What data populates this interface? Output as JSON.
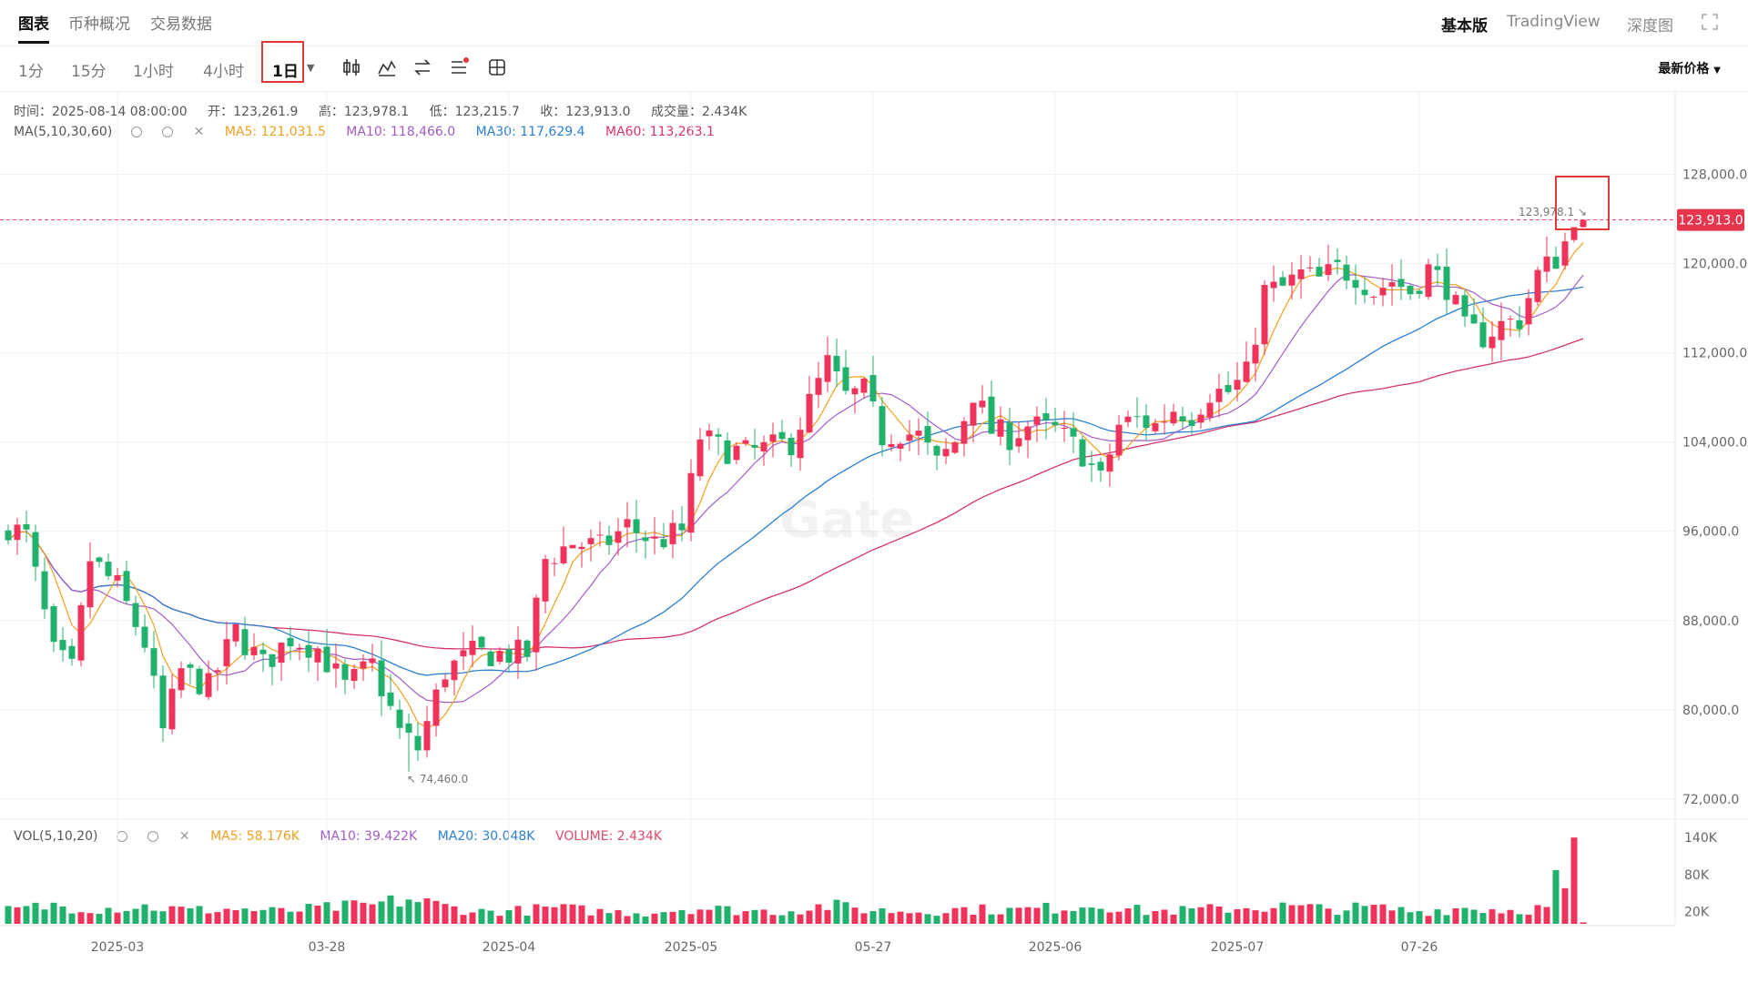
{
  "nav": {
    "tabs": [
      "图表",
      "币种概况",
      "交易数据"
    ],
    "right_tabs": [
      "基本版",
      "TradingView",
      "深度图"
    ]
  },
  "toolbar": {
    "intervals": [
      "1分",
      "15分",
      "1小时",
      "4小时",
      "1日"
    ],
    "active_interval": "1日",
    "price_type": "最新价格",
    "tools": [
      "candle-type-icon",
      "indicator-icon",
      "swap-icon",
      "list-settings-icon",
      "layout-icon"
    ]
  },
  "ohlc": {
    "time": "时间：2025-08-14 08:00:00",
    "open": "开：123,261.9",
    "high": "高：123,978.1",
    "low": "低：123,215.7",
    "close": "收：123,913.0",
    "volume": "成交量：2.434K"
  },
  "ma_legend": {
    "label": "MA(5,10,30,60)",
    "ma5": "MA5: 121,031.5",
    "ma10": "MA10: 118,466.0",
    "ma30": "MA30: 117,629.4",
    "ma60": "MA60: 113,263.1"
  },
  "vol_legend": {
    "label": "VOL(5,10,20)",
    "ma5": "MA5: 58.176K",
    "ma10": "MA10: 39.422K",
    "ma20": "MA20: 30.048K",
    "volume": "VOLUME: 2.434K"
  },
  "colors": {
    "up": "#f0335a",
    "down": "#20b26c",
    "ma5": "#f0a020",
    "ma10": "#a05cc8",
    "ma30": "#2d7fd4",
    "ma60": "#d6336c",
    "highlight": "#e03a3a"
  },
  "chart_data": {
    "type": "candlestick",
    "watermark": "Gate",
    "price_axis": {
      "ticks": [
        "128,000.0",
        "120,000.0",
        "112,000.0",
        "104,000.0",
        "96,000.0",
        "88,000.0",
        "80,000.0",
        "72,000.0"
      ],
      "tick_values": [
        128000,
        120000,
        112000,
        104000,
        96000,
        88000,
        80000,
        72000
      ],
      "range": [
        70200,
        132200
      ]
    },
    "volume_axis": {
      "ticks": [
        "140K",
        "80K",
        "20K"
      ],
      "tick_values": [
        140000,
        80000,
        20000
      ],
      "range": [
        0,
        155000
      ]
    },
    "x_labels": [
      {
        "label": "2025-03",
        "i": 12
      },
      {
        "label": "03-28",
        "i": 35
      },
      {
        "label": "2025-04",
        "i": 55
      },
      {
        "label": "2025-05",
        "i": 75
      },
      {
        "label": "05-27",
        "i": 95
      },
      {
        "label": "2025-06",
        "i": 115
      },
      {
        "label": "2025-07",
        "i": 135
      },
      {
        "label": "07-26",
        "i": 155
      }
    ],
    "current_price": {
      "value": 123913.0,
      "label": "123,913.0"
    },
    "annotations": [
      {
        "text": "↖ 74,460.0",
        "i": 44,
        "price": 74460
      },
      {
        "text": "123,978.1 ↘",
        "i": 173,
        "price": 123978
      }
    ],
    "close_points": [
      [
        0,
        96500
      ],
      [
        2,
        95500
      ],
      [
        5,
        85000
      ],
      [
        7,
        83500
      ],
      [
        9,
        93500
      ],
      [
        12,
        91000
      ],
      [
        15,
        86000
      ],
      [
        17,
        78000
      ],
      [
        19,
        83500
      ],
      [
        22,
        82000
      ],
      [
        25,
        87000
      ],
      [
        28,
        84000
      ],
      [
        31,
        86500
      ],
      [
        34,
        85500
      ],
      [
        37,
        82000
      ],
      [
        40,
        84000
      ],
      [
        43,
        78000
      ],
      [
        45,
        76500
      ],
      [
        48,
        83500
      ],
      [
        51,
        85000
      ],
      [
        54,
        85000
      ],
      [
        57,
        85000
      ],
      [
        59,
        93500
      ],
      [
        62,
        95000
      ],
      [
        65,
        94500
      ],
      [
        68,
        96500
      ],
      [
        71,
        95000
      ],
      [
        74,
        96000
      ],
      [
        76,
        104500
      ],
      [
        78,
        103500
      ],
      [
        81,
        103000
      ],
      [
        84,
        103500
      ],
      [
        86,
        104000
      ],
      [
        88,
        107500
      ],
      [
        90,
        111000
      ],
      [
        92,
        108000
      ],
      [
        94,
        108500
      ],
      [
        96,
        104500
      ],
      [
        98,
        105000
      ],
      [
        100,
        104500
      ],
      [
        102,
        102000
      ],
      [
        104,
        104000
      ],
      [
        106,
        108500
      ],
      [
        108,
        105000
      ],
      [
        110,
        104500
      ],
      [
        112,
        105500
      ],
      [
        115,
        105000
      ],
      [
        118,
        103000
      ],
      [
        120,
        100500
      ],
      [
        122,
        105500
      ],
      [
        124,
        106000
      ],
      [
        126,
        105500
      ],
      [
        128,
        107000
      ],
      [
        130,
        106500
      ],
      [
        132,
        108500
      ],
      [
        134,
        108500
      ],
      [
        136,
        110000
      ],
      [
        138,
        117500
      ],
      [
        140,
        117800
      ],
      [
        142,
        119000
      ],
      [
        144,
        118500
      ],
      [
        146,
        119500
      ],
      [
        148,
        119000
      ],
      [
        150,
        117500
      ],
      [
        152,
        118500
      ],
      [
        154,
        117500
      ],
      [
        156,
        119500
      ],
      [
        158,
        118000
      ],
      [
        160,
        114000
      ],
      [
        162,
        113500
      ],
      [
        164,
        114500
      ],
      [
        166,
        115000
      ],
      [
        168,
        119000
      ],
      [
        170,
        120500
      ],
      [
        172,
        123262
      ],
      [
        173,
        123913
      ]
    ],
    "volume_points": [
      [
        0,
        22000
      ],
      [
        5,
        30000
      ],
      [
        10,
        25000
      ],
      [
        15,
        28000
      ],
      [
        20,
        22000
      ],
      [
        25,
        24000
      ],
      [
        30,
        20000
      ],
      [
        35,
        26000
      ],
      [
        40,
        30000
      ],
      [
        44,
        40000
      ],
      [
        48,
        28000
      ],
      [
        52,
        20000
      ],
      [
        57,
        22000
      ],
      [
        60,
        26000
      ],
      [
        65,
        20000
      ],
      [
        70,
        18000
      ],
      [
        75,
        26000
      ],
      [
        80,
        22000
      ],
      [
        85,
        20000
      ],
      [
        90,
        30000
      ],
      [
        95,
        22000
      ],
      [
        100,
        20000
      ],
      [
        105,
        24000
      ],
      [
        110,
        22000
      ],
      [
        115,
        26000
      ],
      [
        120,
        32000
      ],
      [
        125,
        20000
      ],
      [
        130,
        22000
      ],
      [
        135,
        26000
      ],
      [
        140,
        28000
      ],
      [
        145,
        24000
      ],
      [
        150,
        26000
      ],
      [
        155,
        20000
      ],
      [
        160,
        26000
      ],
      [
        165,
        22000
      ],
      [
        169,
        26000
      ],
      [
        170,
        70000
      ],
      [
        171,
        45000
      ],
      [
        172,
        140000
      ],
      [
        173,
        2434
      ]
    ]
  }
}
